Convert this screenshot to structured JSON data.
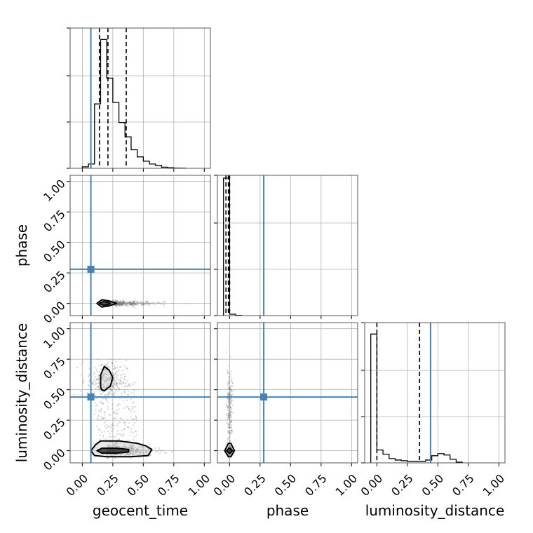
{
  "chart_data": {
    "type": "corner",
    "parameters": [
      "geocent_time",
      "phase",
      "luminosity_distance"
    ],
    "ticks": [
      "0.00",
      "0.25",
      "0.50",
      "0.75",
      "1.00"
    ],
    "axis_range": [
      -0.1,
      1.05
    ],
    "grid": true,
    "colors": {
      "truth": "#4682b4",
      "hist": "#000000",
      "grid": "#b0b0b0",
      "points": "#777777"
    },
    "truths": {
      "geocent_time": 0.07,
      "phase": 0.28,
      "luminosity_distance": 0.44
    },
    "histograms": {
      "geocent_time": {
        "edges": [
          0.0,
          0.05,
          0.1,
          0.15,
          0.2,
          0.25,
          0.3,
          0.35,
          0.4,
          0.45,
          0.5,
          0.55,
          0.6,
          0.65,
          0.7,
          0.75,
          0.8,
          0.85
        ],
        "counts": [
          0.01,
          0.03,
          0.45,
          0.9,
          0.63,
          0.46,
          0.32,
          0.22,
          0.13,
          0.08,
          0.05,
          0.03,
          0.02,
          0.008,
          0.004,
          0.002,
          0.001
        ],
        "ymax": 0.98,
        "quantiles": [
          0.14,
          0.21,
          0.36
        ]
      },
      "phase": {
        "edges": [
          -0.05,
          0.0,
          0.05,
          0.1
        ],
        "counts": [
          0.98,
          0.01,
          0.002
        ],
        "ymax": 1.0,
        "quantiles": [
          -0.03,
          -0.01,
          0.0
        ]
      },
      "luminosity_distance": {
        "edges": [
          -0.05,
          0.0,
          0.05,
          0.1,
          0.15,
          0.2,
          0.25,
          0.3,
          0.35,
          0.4,
          0.45,
          0.5,
          0.55,
          0.6,
          0.65,
          0.7
        ],
        "counts": [
          0.9,
          0.09,
          0.06,
          0.03,
          0.02,
          0.015,
          0.01,
          0.01,
          0.01,
          0.02,
          0.05,
          0.065,
          0.055,
          0.025,
          0.005
        ],
        "ymax": 0.98,
        "quantiles": [
          0.0,
          0.35
        ]
      }
    },
    "pairs": [
      {
        "x": "geocent_time",
        "y": "phase",
        "contours": [
          [
            [
              0.12,
              0.0
            ],
            [
              0.16,
              0.03
            ],
            [
              0.22,
              0.02
            ],
            [
              0.28,
              0.0
            ],
            [
              0.22,
              -0.02
            ],
            [
              0.16,
              -0.03
            ]
          ],
          [
            [
              0.14,
              0.0
            ],
            [
              0.17,
              0.015
            ],
            [
              0.21,
              0.01
            ],
            [
              0.23,
              0.0
            ],
            [
              0.21,
              -0.01
            ],
            [
              0.17,
              -0.015
            ]
          ]
        ]
      },
      {
        "x": "geocent_time",
        "y": "luminosity_distance",
        "contours": [
          [
            [
              0.15,
              0.52
            ],
            [
              0.15,
              0.62
            ],
            [
              0.18,
              0.69
            ],
            [
              0.22,
              0.66
            ],
            [
              0.25,
              0.6
            ],
            [
              0.23,
              0.53
            ],
            [
              0.18,
              0.49
            ],
            [
              0.16,
              0.5
            ]
          ],
          [
            [
              0.07,
              0.0
            ],
            [
              0.11,
              0.05
            ],
            [
              0.15,
              0.08
            ],
            [
              0.3,
              0.08
            ],
            [
              0.45,
              0.06
            ],
            [
              0.52,
              0.04
            ],
            [
              0.57,
              0.01
            ],
            [
              0.54,
              -0.04
            ],
            [
              0.4,
              -0.05
            ],
            [
              0.2,
              -0.05
            ],
            [
              0.1,
              -0.04
            ]
          ],
          [
            [
              0.12,
              0.0
            ],
            [
              0.16,
              0.02
            ],
            [
              0.28,
              0.02
            ],
            [
              0.38,
              0.01
            ],
            [
              0.38,
              -0.01
            ],
            [
              0.28,
              -0.02
            ],
            [
              0.16,
              -0.02
            ]
          ]
        ]
      },
      {
        "x": "phase",
        "y": "luminosity_distance",
        "contours": [
          [
            [
              -0.04,
              0.0
            ],
            [
              -0.01,
              0.06
            ],
            [
              0.01,
              0.06
            ],
            [
              0.04,
              0.0
            ],
            [
              0.01,
              -0.05
            ],
            [
              -0.01,
              -0.05
            ]
          ],
          [
            [
              -0.025,
              0.0
            ],
            [
              -0.005,
              0.02
            ],
            [
              0.005,
              0.02
            ],
            [
              0.025,
              0.0
            ],
            [
              0.005,
              -0.02
            ],
            [
              -0.005,
              -0.02
            ]
          ]
        ]
      }
    ]
  }
}
